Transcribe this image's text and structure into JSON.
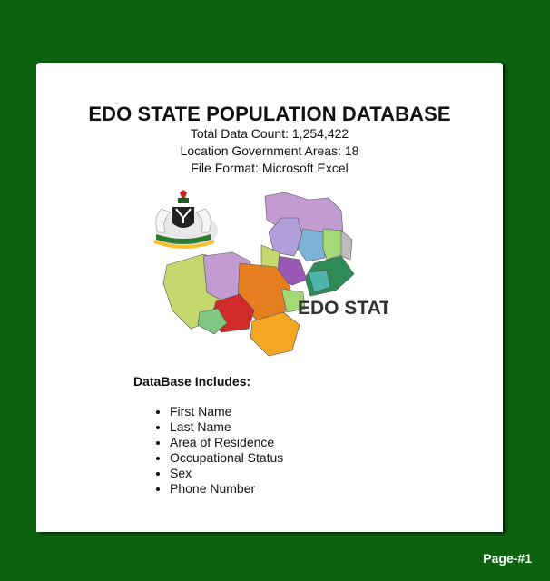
{
  "title": "EDO STATE POPULATION DATABASE",
  "stats": {
    "total": "Total Data Count: 1,254,422",
    "lga": "Location Government Areas: 18",
    "format": "File Format: Microsoft Excel"
  },
  "map": {
    "label": "EDO STATE",
    "region_colors": [
      "#b39ddb",
      "#c5d86d",
      "#d12a2a",
      "#e67e22",
      "#f5a623",
      "#4db6ac",
      "#81c784",
      "#7fb3d5",
      "#a3d977",
      "#c39bd3",
      "#9b59b6",
      "#2e8b57"
    ]
  },
  "includes": {
    "heading": "DataBase Includes:",
    "items": [
      "First Name",
      "Last Name",
      "Area of Residence",
      "Occupational Status",
      "Sex",
      "Phone Number"
    ]
  },
  "footer": {
    "page_label": "Page-#1"
  },
  "colors": {
    "background": "#0c620f",
    "card": "#ffffff",
    "text": "#111111"
  }
}
